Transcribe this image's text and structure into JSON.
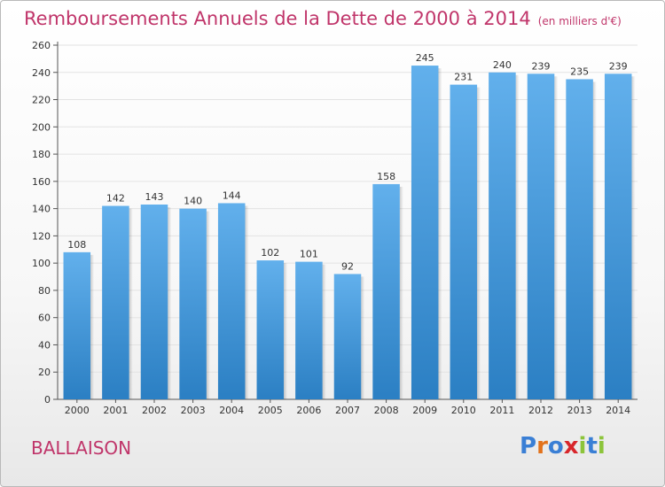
{
  "header": {
    "title": "Remboursements Annuels de la Dette de 2000 à 2014",
    "unit": "(en milliers d'€)"
  },
  "commune": "BALLAISON",
  "logo": {
    "text": "Proxiti",
    "letters": [
      {
        "char": "P",
        "color": "#3a7fd5"
      },
      {
        "char": "r",
        "color": "#e2721b"
      },
      {
        "char": "o",
        "color": "#3a7fd5"
      },
      {
        "char": "x",
        "color": "#d8262b"
      },
      {
        "char": "i",
        "color": "#8cc43a"
      },
      {
        "char": "t",
        "color": "#3a7fd5"
      },
      {
        "char": "i",
        "color": "#8cc43a"
      }
    ]
  },
  "colors": {
    "title": "#c0356a",
    "bar_top": "#62b0ec",
    "bar_bottom": "#2b7fc3",
    "grid": "#e3e3e3"
  },
  "chart_data": {
    "type": "bar",
    "title": "Remboursements Annuels de la Dette de 2000 à 2014",
    "subtitle": "(en milliers d'€)",
    "categories": [
      "2000",
      "2001",
      "2002",
      "2003",
      "2004",
      "2005",
      "2006",
      "2007",
      "2008",
      "2009",
      "2010",
      "2011",
      "2012",
      "2013",
      "2014"
    ],
    "values": [
      108,
      142,
      143,
      140,
      144,
      102,
      101,
      92,
      158,
      245,
      231,
      240,
      239,
      235,
      239
    ],
    "ylim": [
      0,
      260
    ],
    "yticks": [
      0,
      20,
      40,
      60,
      80,
      100,
      120,
      140,
      160,
      180,
      200,
      220,
      240,
      260
    ],
    "grid": true,
    "xlabel": "",
    "ylabel": ""
  }
}
